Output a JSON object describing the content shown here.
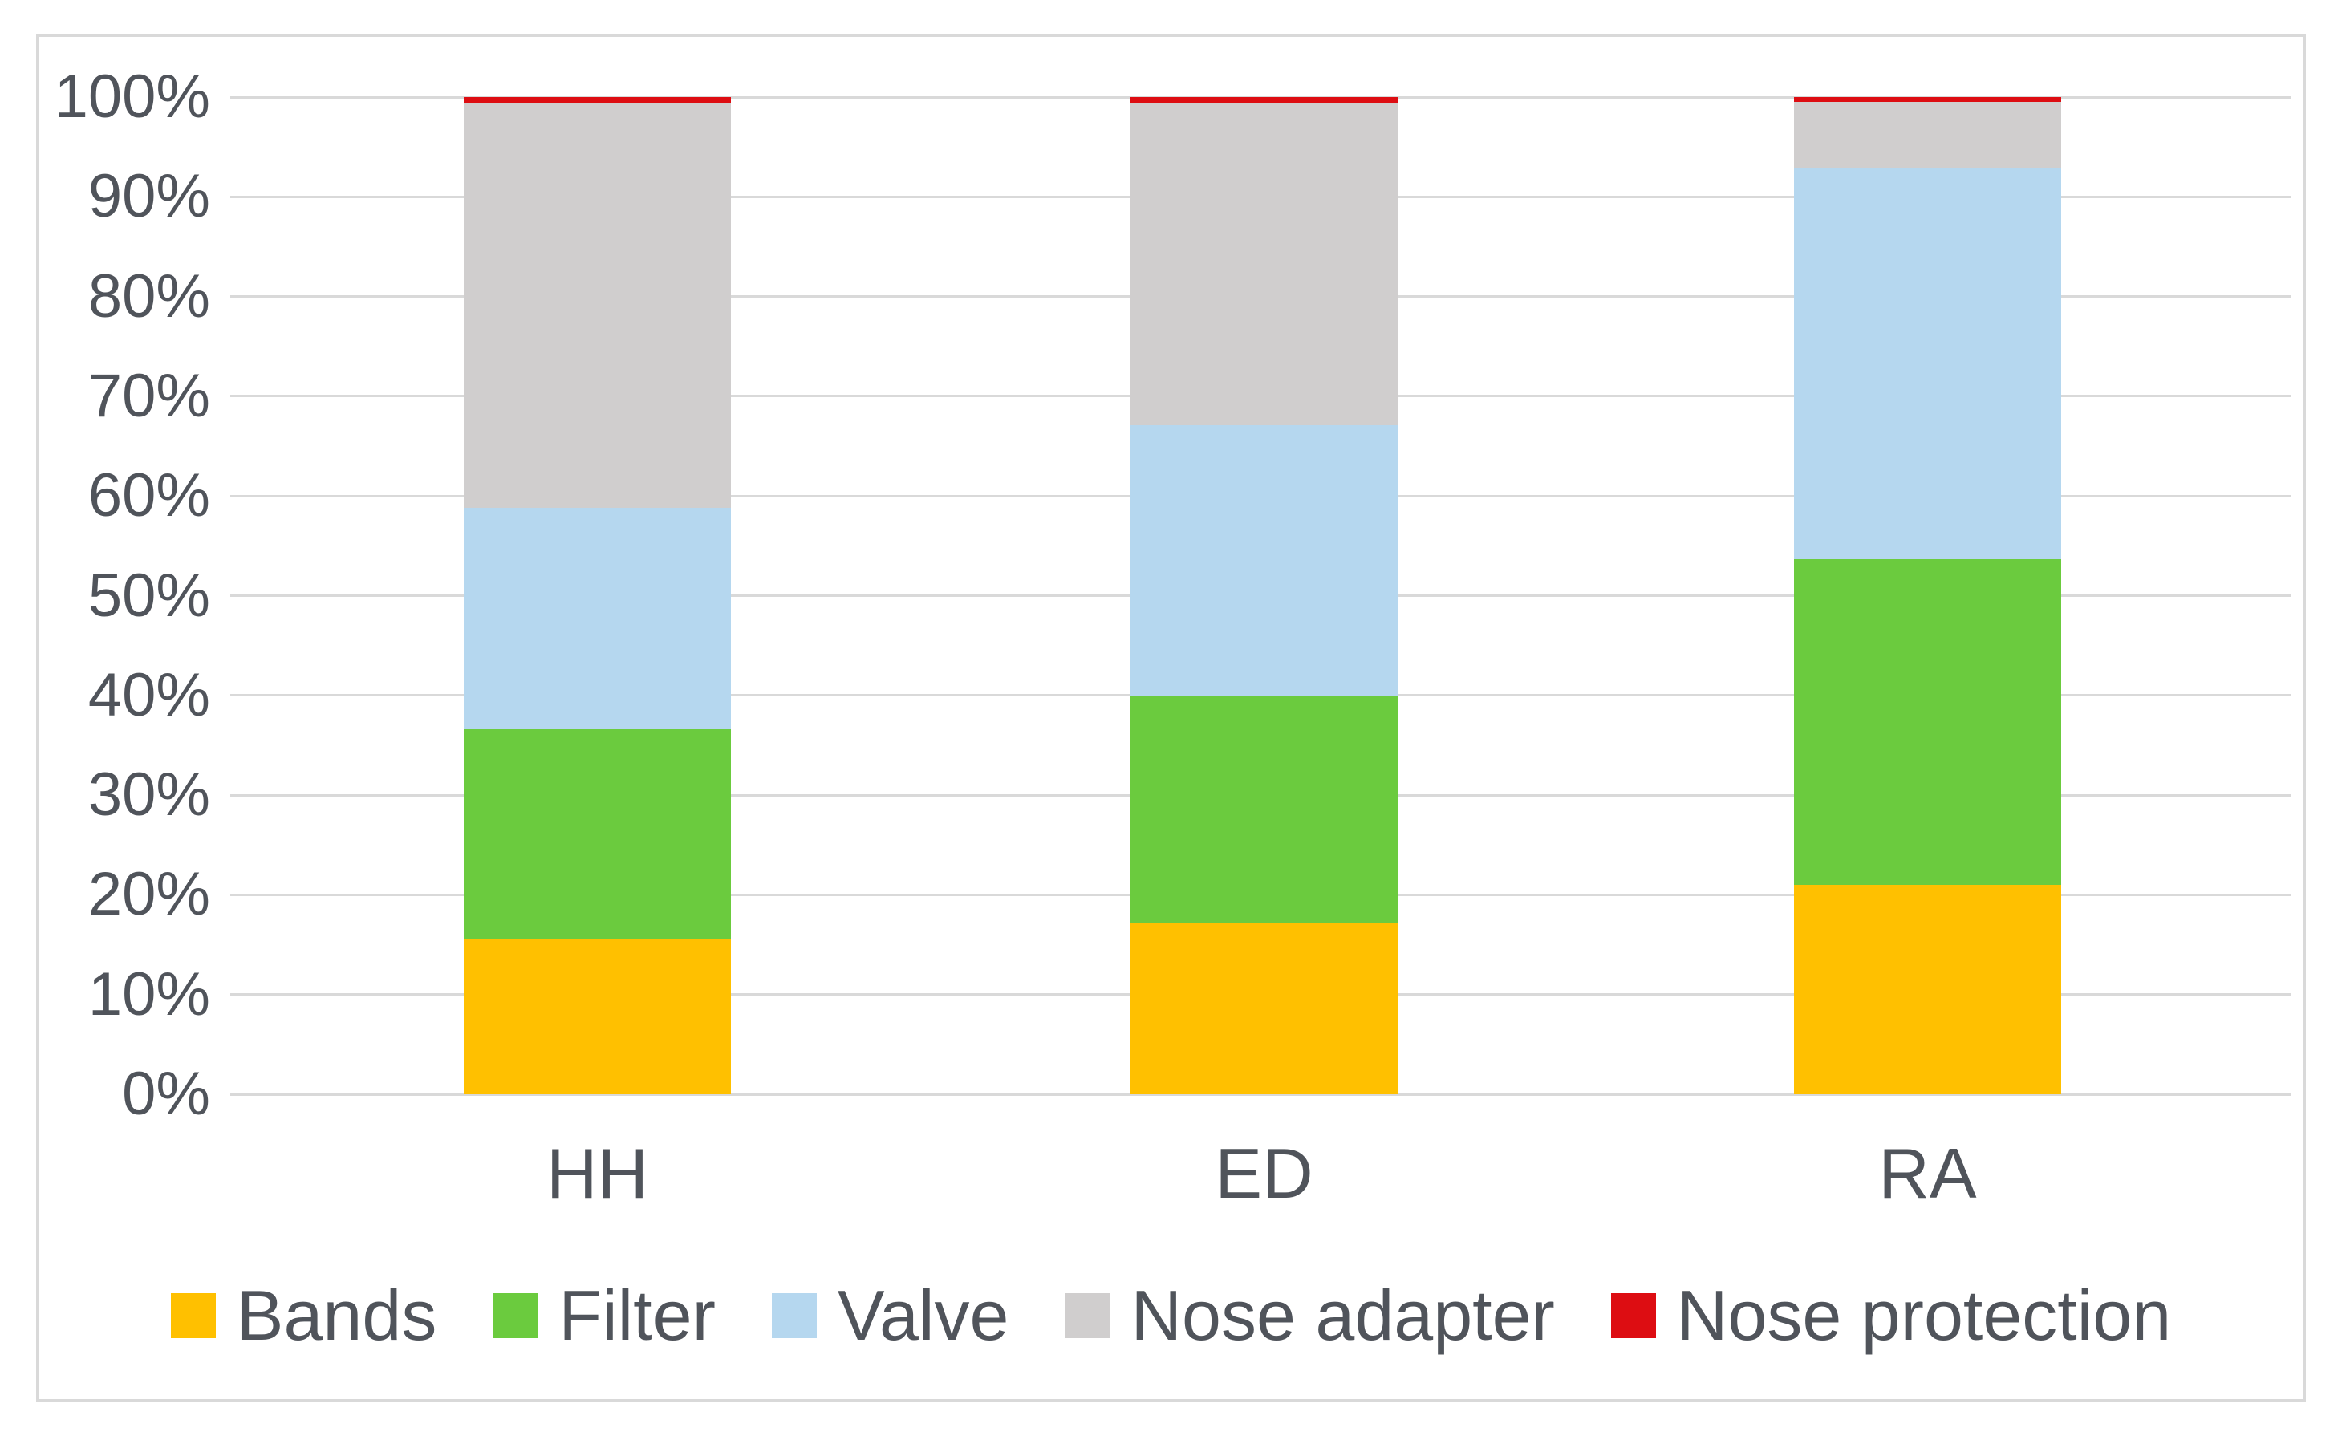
{
  "chart_data": {
    "type": "bar",
    "subtype": "stacked-100-percent",
    "title": "",
    "xlabel": "",
    "ylabel": "",
    "categories": [
      "HH",
      "ED",
      "RA"
    ],
    "series": [
      {
        "name": "Bands",
        "color": "#FFC000",
        "values": [
          15.5,
          17.1,
          21.0
        ]
      },
      {
        "name": "Filter",
        "color": "#6BCB3E",
        "values": [
          21.1,
          22.8,
          32.7
        ]
      },
      {
        "name": "Valve",
        "color": "#B5D7EF",
        "values": [
          22.2,
          27.2,
          39.2
        ]
      },
      {
        "name": "Nose adapter",
        "color": "#D0CECE",
        "values": [
          40.6,
          32.3,
          6.6
        ]
      },
      {
        "name": "Nose protection",
        "color": "#DD0D12",
        "values": [
          0.6,
          0.6,
          0.5
        ]
      }
    ],
    "y_axis": {
      "min": 0,
      "max": 100,
      "tick_step": 10,
      "tick_labels": [
        "0%",
        "10%",
        "20%",
        "30%",
        "40%",
        "50%",
        "60%",
        "70%",
        "80%",
        "90%",
        "100%"
      ],
      "grid": true
    },
    "legend_position": "bottom"
  },
  "styles": {
    "grid_color": "#D9D9D9",
    "border_color": "#D9D9D9",
    "text_color": "#50545B",
    "background": "#FFFFFF"
  }
}
